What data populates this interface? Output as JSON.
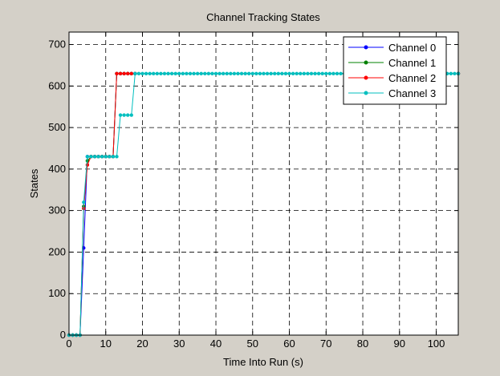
{
  "chart_data": {
    "type": "line",
    "title": "Channel Tracking States",
    "xlabel": "Time Into Run (s)",
    "ylabel": "States",
    "xlim": [
      0,
      106
    ],
    "ylim": [
      0,
      730
    ],
    "xticks": [
      0,
      10,
      20,
      30,
      40,
      50,
      60,
      70,
      80,
      90,
      100
    ],
    "yticks": [
      0,
      100,
      200,
      300,
      400,
      500,
      600,
      700
    ],
    "grid": true,
    "legend_position": "top-right",
    "series": [
      {
        "name": "Channel 0",
        "color": "#0000ff",
        "x": [
          0,
          1,
          2,
          3,
          4,
          5,
          6,
          7,
          8,
          9,
          10,
          11,
          12,
          13,
          14,
          15,
          16,
          17,
          18,
          106
        ],
        "y": [
          0,
          0,
          0,
          0,
          210,
          430,
          430,
          430,
          430,
          430,
          430,
          430,
          430,
          630,
          630,
          630,
          630,
          630,
          630,
          630
        ]
      },
      {
        "name": "Channel 1",
        "color": "#008000",
        "x": [
          0,
          1,
          2,
          3,
          4,
          5,
          6,
          7,
          8,
          9,
          10,
          11,
          12,
          13,
          14,
          15,
          16,
          17,
          18,
          106
        ],
        "y": [
          0,
          0,
          0,
          0,
          310,
          420,
          430,
          430,
          430,
          430,
          430,
          430,
          430,
          630,
          630,
          630,
          630,
          630,
          630,
          630
        ]
      },
      {
        "name": "Channel 2",
        "color": "#ff0000",
        "x": [
          0,
          1,
          2,
          3,
          4,
          5,
          6,
          7,
          8,
          9,
          10,
          11,
          12,
          13,
          14,
          15,
          16,
          17,
          18,
          106
        ],
        "y": [
          0,
          0,
          0,
          0,
          305,
          410,
          430,
          430,
          430,
          430,
          430,
          430,
          430,
          630,
          630,
          630,
          630,
          630,
          630,
          630
        ]
      },
      {
        "name": "Channel 3",
        "color": "#00bfbf",
        "x": [
          0,
          1,
          2,
          3,
          4,
          5,
          6,
          7,
          8,
          9,
          10,
          11,
          12,
          13,
          14,
          15,
          16,
          17,
          18,
          19,
          20,
          21,
          22,
          23,
          24,
          25,
          26,
          27,
          28,
          29,
          30,
          31,
          32,
          33,
          34,
          35,
          36,
          37,
          38,
          39,
          40,
          41,
          42,
          43,
          44,
          45,
          46,
          47,
          48,
          49,
          50,
          51,
          52,
          53,
          54,
          55,
          56,
          57,
          58,
          59,
          60,
          61,
          62,
          63,
          64,
          65,
          66,
          67,
          68,
          69,
          70,
          71,
          72,
          73,
          74,
          75,
          76,
          77,
          78,
          79,
          80,
          81,
          82,
          83,
          84,
          85,
          86,
          87,
          88,
          89,
          90,
          91,
          92,
          93,
          94,
          95,
          96,
          97,
          98,
          99,
          100,
          101,
          102,
          103,
          104,
          105,
          106
        ],
        "y": [
          0,
          0,
          0,
          0,
          320,
          430,
          430,
          430,
          430,
          430,
          430,
          430,
          430,
          430,
          530,
          530,
          530,
          530,
          630,
          630,
          630,
          630,
          630,
          630,
          630,
          630,
          630,
          630,
          630,
          630,
          630,
          630,
          630,
          630,
          630,
          630,
          630,
          630,
          630,
          630,
          630,
          630,
          630,
          630,
          630,
          630,
          630,
          630,
          630,
          630,
          630,
          630,
          630,
          630,
          630,
          630,
          630,
          630,
          630,
          630,
          630,
          630,
          630,
          630,
          630,
          630,
          630,
          630,
          630,
          630,
          630,
          630,
          630,
          630,
          630,
          630,
          630,
          630,
          630,
          630,
          630,
          630,
          630,
          630,
          630,
          630,
          630,
          630,
          630,
          630,
          630,
          630,
          630,
          630,
          630,
          630,
          630,
          630,
          630,
          630,
          630,
          630,
          630,
          630,
          630,
          630,
          630
        ]
      }
    ]
  }
}
